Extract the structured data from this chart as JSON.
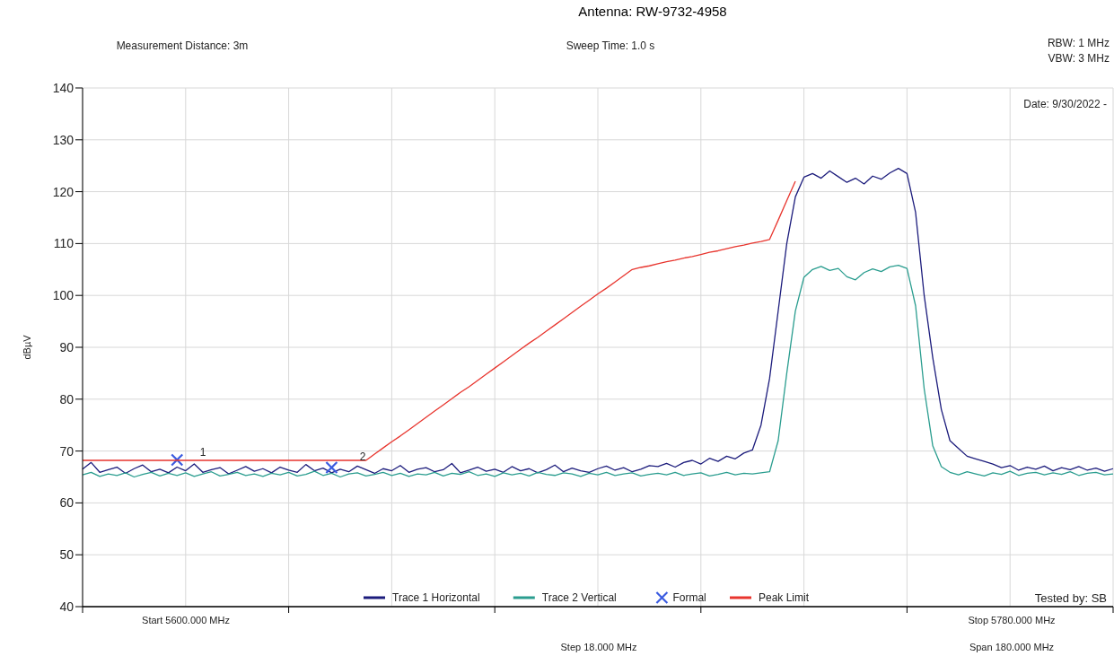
{
  "chart_data": {
    "type": "line",
    "title": "Antenna: RW-9732-4958",
    "ylabel": "dBµV",
    "annotations": [
      "Measurement Distance: 3m",
      "Sweep Time: 1.0 s",
      "RBW: 1 MHz",
      "VBW: 3 MHz",
      "Date: 9/30/2022 -",
      "Tested by: SB",
      "Start 5600.000 MHz",
      "Step 18.000 MHz",
      "Stop 5780.000 MHz",
      "Span 180.000 MHz",
      "1",
      "2"
    ],
    "categories": [
      null,
      null,
      null,
      null,
      null,
      null,
      null,
      null,
      null,
      null,
      null,
      null,
      null,
      null,
      null,
      null,
      null,
      null,
      null,
      null,
      null,
      null,
      null,
      null,
      null,
      null,
      null,
      null,
      null,
      null,
      null,
      null,
      null,
      null,
      null,
      null,
      null,
      null,
      null,
      null,
      null,
      null,
      null,
      null,
      null,
      null,
      null,
      null,
      null,
      null,
      null,
      null,
      null,
      null,
      null,
      null,
      null,
      null,
      null,
      null,
      null,
      null,
      null,
      null,
      null,
      null,
      null,
      null,
      null,
      null,
      null,
      null,
      null,
      null,
      null,
      null,
      null,
      null,
      null,
      null,
      null,
      null,
      null,
      null,
      null,
      null,
      null,
      null,
      null,
      null,
      null,
      null,
      null,
      null,
      null,
      null,
      null,
      null,
      null,
      null,
      null,
      null,
      null,
      null,
      null,
      null,
      null,
      null,
      null,
      null,
      null,
      null,
      null,
      null,
      null,
      null,
      null,
      null,
      null,
      null,
      null
    ],
    "ylim": [
      40,
      140
    ],
    "yticks": [
      40,
      50,
      60,
      70,
      80,
      90,
      100,
      110,
      120,
      130,
      140
    ],
    "grid": true,
    "legend": "bottom",
    "line_style": "solid",
    "series": [
      {
        "name": "Trace 1 Horizontal",
        "color": "#1c1c7c",
        "marker": "none",
        "values": [
          66.5,
          67.8,
          65.9,
          66.4,
          66.9,
          65.7,
          66.6,
          67.3,
          66.0,
          66.5,
          65.8,
          66.9,
          66.2,
          67.5,
          65.9,
          66.4,
          66.8,
          65.6,
          66.3,
          67.0,
          66.1,
          66.6,
          65.8,
          66.9,
          66.3,
          65.9,
          67.4,
          66.2,
          66.7,
          65.8,
          66.5,
          66.0,
          67.1,
          66.4,
          65.7,
          66.6,
          66.2,
          67.2,
          65.9,
          66.5,
          66.8,
          66.0,
          66.4,
          67.6,
          65.8,
          66.3,
          66.9,
          66.1,
          66.5,
          65.9,
          67.0,
          66.2,
          66.6,
          65.8,
          66.4,
          67.3,
          66.0,
          66.7,
          66.2,
          65.9,
          66.6,
          67.1,
          66.3,
          66.8,
          66.0,
          66.5,
          67.2,
          67.0,
          67.6,
          66.9,
          67.8,
          68.2,
          67.5,
          68.6,
          68.0,
          69.0,
          68.5,
          69.6,
          70.2,
          75,
          84,
          97,
          110,
          119,
          122.8,
          123.5,
          122.6,
          124.0,
          122.9,
          121.8,
          122.6,
          121.5,
          123.0,
          122.4,
          123.6,
          124.5,
          123.5,
          116,
          100,
          88,
          78,
          72,
          70.5,
          69,
          68.5,
          68,
          67.5,
          66.8,
          67.2,
          66.3,
          66.9,
          66.5,
          67.1,
          66.2,
          66.8,
          66.4,
          67.0,
          66.3,
          66.7,
          66.1,
          66.6
        ]
      },
      {
        "name": "Trace 2 Vertical",
        "color": "#2a9d8f",
        "marker": "none",
        "values": [
          65.4,
          65.9,
          65.1,
          65.6,
          65.3,
          65.8,
          65.0,
          65.5,
          65.9,
          65.2,
          65.7,
          65.3,
          65.8,
          65.1,
          65.6,
          66.0,
          65.2,
          65.5,
          65.9,
          65.3,
          65.6,
          65.1,
          65.7,
          65.4,
          65.9,
          65.2,
          65.5,
          66.1,
          65.3,
          65.7,
          65.0,
          65.6,
          65.8,
          65.2,
          65.5,
          65.9,
          65.3,
          65.7,
          65.1,
          65.6,
          65.4,
          65.9,
          65.2,
          65.7,
          65.5,
          66.0,
          65.3,
          65.6,
          65.1,
          65.8,
          65.4,
          65.7,
          65.2,
          65.9,
          65.5,
          65.3,
          65.8,
          65.6,
          65.1,
          65.7,
          65.4,
          65.9,
          65.3,
          65.6,
          65.8,
          65.2,
          65.5,
          65.7,
          65.4,
          65.9,
          65.3,
          65.6,
          65.8,
          65.2,
          65.5,
          65.9,
          65.4,
          65.7,
          65.6,
          65.8,
          66,
          72,
          85,
          97,
          103.5,
          105,
          105.6,
          104.8,
          105.2,
          103.6,
          103,
          104.4,
          105.1,
          104.6,
          105.5,
          105.8,
          105.2,
          98,
          82,
          71,
          67,
          65.9,
          65.4,
          66.0,
          65.6,
          65.2,
          65.8,
          65.5,
          66.1,
          65.3,
          65.7,
          65.9,
          65.4,
          65.8,
          65.5,
          66.0,
          65.3,
          65.7,
          65.9,
          65.4,
          65.6
        ]
      },
      {
        "name": "Formal",
        "type": "scatter",
        "color": "#3a5be0",
        "marker": "cross",
        "values": [
          null,
          null,
          null,
          null,
          null,
          null,
          null,
          null,
          null,
          null,
          null,
          68.3,
          null,
          null,
          null,
          null,
          null,
          null,
          null,
          null,
          null,
          null,
          null,
          null,
          null,
          null,
          null,
          null,
          null,
          66.8,
          null,
          null,
          null,
          null,
          null,
          null,
          null,
          null,
          null,
          null,
          null,
          null,
          null,
          null,
          null,
          null,
          null,
          null,
          null,
          null,
          null,
          null,
          null,
          null,
          null,
          null,
          null,
          null,
          null,
          null,
          null,
          null,
          null,
          null,
          null,
          null,
          null,
          null,
          null,
          null,
          null,
          null,
          null,
          null,
          null,
          null,
          null,
          null,
          null,
          null,
          null,
          null,
          null,
          null,
          null,
          null,
          null,
          null,
          null,
          null,
          null,
          null,
          null,
          null,
          null,
          null,
          null,
          null,
          null,
          null,
          null,
          null,
          null,
          null,
          null,
          null,
          null,
          null,
          null,
          null,
          null,
          null,
          null,
          null,
          null,
          null,
          null,
          null,
          null,
          null,
          null
        ]
      },
      {
        "name": "Peak Limit",
        "color": "#e8352e",
        "marker": "none",
        "values": [
          68.2,
          68.2,
          68.2,
          68.2,
          68.2,
          68.2,
          68.2,
          68.2,
          68.2,
          68.2,
          68.2,
          68.2,
          68.2,
          68.2,
          68.2,
          68.2,
          68.2,
          68.2,
          68.2,
          68.2,
          68.2,
          68.2,
          68.2,
          68.2,
          68.2,
          68.2,
          68.2,
          68.2,
          68.2,
          68.2,
          68.2,
          68.2,
          68.2,
          68.2,
          69.4,
          70.6,
          71.8,
          72.9,
          74.1,
          75.3,
          76.5,
          77.7,
          78.9,
          80.1,
          81.3,
          82.4,
          83.6,
          84.8,
          86,
          87.2,
          88.4,
          89.6,
          90.8,
          91.9,
          93.1,
          94.3,
          95.5,
          96.7,
          97.9,
          99.1,
          100.3,
          101.4,
          102.6,
          103.8,
          105,
          105.4,
          105.7,
          106.1,
          106.5,
          106.8,
          107.2,
          107.5,
          107.9,
          108.3,
          108.6,
          109,
          109.4,
          109.7,
          110.1,
          110.4,
          110.8,
          114.5,
          118.3,
          122,
          null,
          null,
          null,
          null,
          null,
          null,
          null,
          null,
          null,
          null,
          null,
          null,
          null,
          null,
          null,
          null,
          null,
          null,
          null,
          null,
          null,
          null,
          null,
          null,
          null,
          null,
          null,
          null,
          null,
          null,
          null,
          null,
          null,
          null,
          null,
          null,
          null
        ]
      }
    ]
  }
}
